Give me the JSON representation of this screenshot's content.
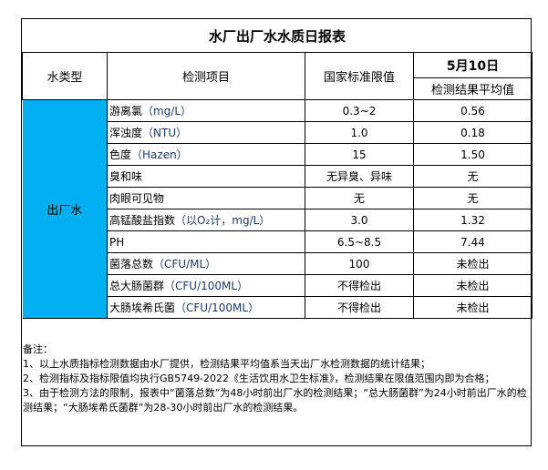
{
  "title": "水厂出厂水水质日报表",
  "headers": {
    "type": "水类型",
    "item": "检测项目",
    "limit": "国家标准限值",
    "date": "5月10日",
    "result": "检测结果平均值"
  },
  "water_type": "出厂水",
  "rows": [
    {
      "item": "游离氯",
      "unit": "（mg/L）",
      "limit": "0.3~2",
      "result": "0.56"
    },
    {
      "item": "浑浊度",
      "unit": "（NTU）",
      "limit": "1.0",
      "result": "0.18"
    },
    {
      "item": "色度",
      "unit": "（Hazen）",
      "limit": "15",
      "result": "1.50"
    },
    {
      "item": "臭和味",
      "unit": "",
      "limit": "无异臭、异味",
      "result": "无"
    },
    {
      "item": "肉眼可见物",
      "unit": "",
      "limit": "无",
      "result": "无"
    },
    {
      "item": "高锰酸盐指数",
      "unit": "（以O₂计，mg/L）",
      "limit": "3.0",
      "result": "1.32"
    },
    {
      "item": "PH",
      "unit": "",
      "limit": "6.5~8.5",
      "result": "7.44"
    },
    {
      "item": "菌落总数",
      "unit": "（CFU/ML）",
      "limit": "100",
      "result": "未检出"
    },
    {
      "item": "总大肠菌群",
      "unit": "（CFU/100ML）",
      "limit": "不得检出",
      "result": "未检出"
    },
    {
      "item": "大肠埃希氏菌",
      "unit": "（CFU/100ML）",
      "limit": "不得检出",
      "result": "未检出"
    }
  ],
  "notes": {
    "heading": "备注：",
    "n1": "1、以上水质指标检测数据由水厂提供，检测结果平均值系当天出厂水检测数据的统计结果；",
    "n2": "2、检测指标及指标限值均执行GB5749-2022《生活饮用水卫生标准》，检测结果在限值范围内即为合格；",
    "n3": "3、由于检测方法的限制，报表中“菌落总数”为48小时前出厂水的检测结果；“总大肠菌群”为24小时前出厂水的检测结果；“大肠埃希氏菌群”为28-30小时前出厂水的检测结果。"
  },
  "colors": {
    "water_type_bg": "#00b0f0"
  }
}
